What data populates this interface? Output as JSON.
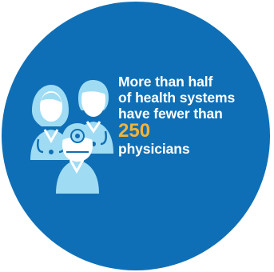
{
  "infographic": {
    "lines": [
      "More than half",
      "of health systems",
      "have fewer than"
    ],
    "number": "250",
    "last_line": "physicians"
  },
  "icons": {
    "group": "physicians-group-icon",
    "female": "female-doctor-icon",
    "male": "male-doctor-icon",
    "head_mirror": "doctor-head-mirror-icon"
  },
  "colors": {
    "circle": "#0f6fb6",
    "text": "#ffffff",
    "highlight": "#f5b335",
    "icon_fill": "#9fdcf4",
    "icon_line": "#0f6fb6"
  }
}
